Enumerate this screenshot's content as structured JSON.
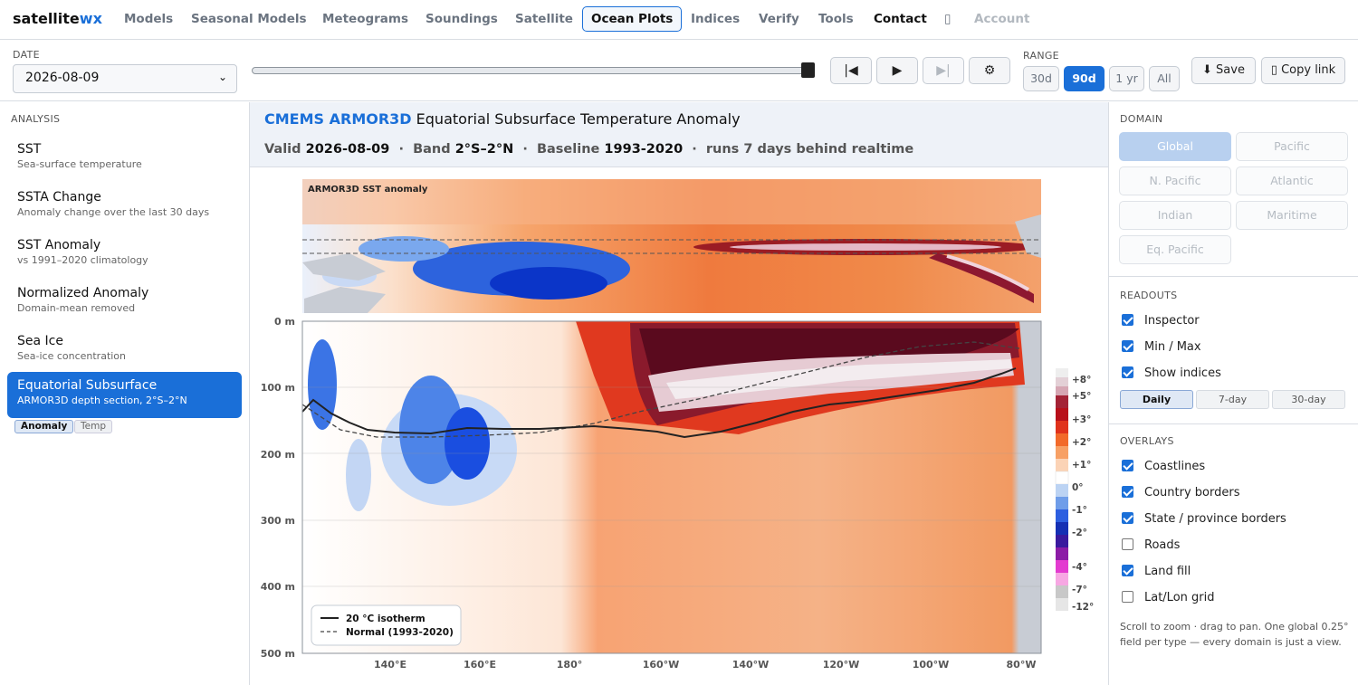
{
  "nav": {
    "brand_main": "satellite",
    "brand_accent": "wx",
    "items": [
      "Models",
      "Seasonal Models",
      "Meteograms",
      "Soundings",
      "Satellite",
      "Ocean Plots",
      "Indices",
      "Verify",
      "Tools",
      "Contact",
      "▯",
      "Account"
    ],
    "active": "Ocean Plots"
  },
  "toolbar": {
    "date_label": "DATE",
    "date_value": "2026-08-09",
    "slider_position": 1.0,
    "play_first": "|◀",
    "play": "▶",
    "play_last": "▶|",
    "settings": "⚙",
    "range_label": "RANGE",
    "ranges": [
      "30d",
      "90d",
      "1 yr",
      "All"
    ],
    "range_active": "90d",
    "save_label": "⬇ Save",
    "copy_label": "▯ Copy link"
  },
  "left": {
    "section": "ANALYSIS",
    "items": [
      {
        "title": "SST",
        "sub": "Sea-surface temperature"
      },
      {
        "title": "SSTA Change",
        "sub": "Anomaly change over the last 30 days"
      },
      {
        "title": "SST Anomaly",
        "sub": "vs 1991–2020 climatology"
      },
      {
        "title": "Normalized Anomaly",
        "sub": "Domain-mean removed"
      },
      {
        "title": "Sea Ice",
        "sub": "Sea-ice concentration"
      },
      {
        "title": "Equatorial Subsurface",
        "sub": "ARMOR3D depth section, 2°S–2°N"
      }
    ],
    "active_index": 5,
    "modes": [
      "Anomaly",
      "Temp"
    ],
    "mode_active": "Anomaly"
  },
  "header": {
    "title_bold": "CMEMS ARMOR3D",
    "title_rest": " Equatorial Subsurface Temperature Anomaly",
    "valid_label": "Valid",
    "valid_value": "2026-08-09",
    "band_label": "Band",
    "band_value": "2°S–2°N",
    "baseline_label": "Baseline",
    "baseline_value": "1993-2020",
    "lag_text": "runs 7 days behind realtime",
    "sep": "·"
  },
  "plot": {
    "map_title": "ARMOR3D SST anomaly",
    "y_ticks": [
      "0 m",
      "100 m",
      "200 m",
      "300 m",
      "400 m",
      "500 m"
    ],
    "x_ticks": [
      "140°E",
      "160°E",
      "180°",
      "160°W",
      "140°W",
      "120°W",
      "100°W",
      "80°W"
    ],
    "colorbar_labels": [
      "+8°",
      "+5°",
      "+3°",
      "+2°",
      "+1°",
      "0°",
      "-1°",
      "-2°",
      "-4°",
      "-7°",
      "-12°"
    ],
    "legend": [
      "20 °C isotherm",
      "Normal (1993-2020)"
    ]
  },
  "right": {
    "domain_label": "DOMAIN",
    "domains": [
      "Global",
      "Pacific",
      "N. Pacific",
      "Atlantic",
      "Indian",
      "Maritime",
      "Eq. Pacific"
    ],
    "domain_active": "Global",
    "readouts_label": "READOUTS",
    "readouts": [
      {
        "label": "Inspector",
        "checked": true
      },
      {
        "label": "Min / Max",
        "checked": true
      },
      {
        "label": "Show indices",
        "checked": true
      }
    ],
    "periods": [
      "Daily",
      "7-day",
      "30-day"
    ],
    "period_active": "Daily",
    "overlays_label": "OVERLAYS",
    "overlays": [
      {
        "label": "Coastlines",
        "checked": true
      },
      {
        "label": "Country borders",
        "checked": true
      },
      {
        "label": "State / province borders",
        "checked": true
      },
      {
        "label": "Roads",
        "checked": false
      },
      {
        "label": "Land fill",
        "checked": true
      },
      {
        "label": "Lat/Lon grid",
        "checked": false
      }
    ],
    "note": "Scroll to zoom · drag to pan. One global 0.25° field per type — every domain is just a view."
  },
  "colors": {
    "accent": "#1a6fd8",
    "warm_dark": "#5a0a1e",
    "warm": "#e34a1a",
    "cool": "#1e50d8"
  }
}
